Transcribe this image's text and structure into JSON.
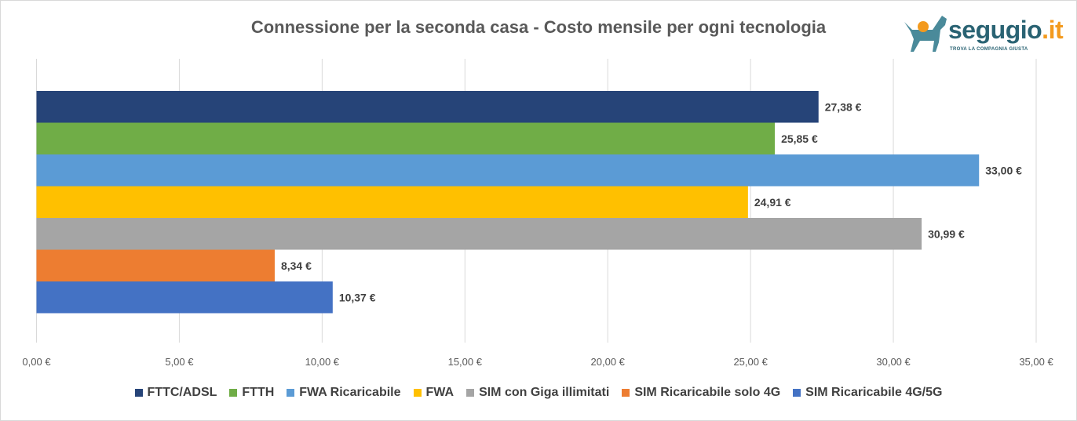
{
  "chart_data": {
    "type": "bar",
    "orientation": "horizontal",
    "title": "Connessione per la seconda casa - Costo mensile per ogni tecnologia",
    "categories": [
      "FTTC/ADSL",
      "FTTH",
      "FWA Ricaricabile",
      "FWA",
      "SIM con Giga illimitati",
      "SIM Ricaricabile solo 4G",
      "SIM Ricaricabile 4G/5G"
    ],
    "values": [
      27.38,
      25.85,
      33.0,
      24.91,
      30.99,
      8.34,
      10.37
    ],
    "data_labels": [
      "27,38 €",
      "25,85 €",
      "33,00 €",
      "24,91 €",
      "30,99 €",
      "8,34 €",
      "10,37 €"
    ],
    "colors": [
      "#264478",
      "#70ad47",
      "#5b9bd5",
      "#ffc000",
      "#a5a5a5",
      "#ed7d31",
      "#4472c4"
    ],
    "xlim": [
      0,
      35
    ],
    "x_ticks": [
      "0,00 €",
      "5,00 €",
      "10,00 €",
      "15,00 €",
      "20,00 €",
      "25,00 €",
      "30,00 €",
      "35,00 €"
    ],
    "grid": true,
    "legend_position": "bottom"
  },
  "logo": {
    "text_main": "segugio",
    "text_tld": ".it",
    "tagline": "TROVA LA COMPAGNIA GIUSTA"
  }
}
